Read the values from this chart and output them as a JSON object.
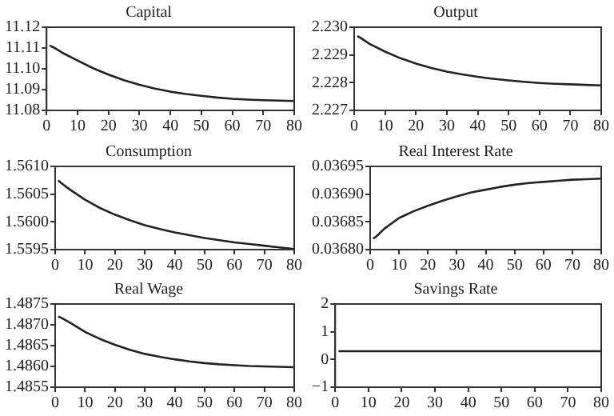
{
  "chart_data": [
    {
      "type": "line",
      "title": "Capital",
      "x": [
        1,
        2,
        5,
        10,
        15,
        20,
        25,
        30,
        35,
        40,
        45,
        50,
        55,
        60,
        65,
        70,
        75,
        80
      ],
      "series": [
        {
          "color": "#222222",
          "values": [
            11.1112,
            11.1105,
            11.1078,
            11.104,
            11.1003,
            11.0972,
            11.0945,
            11.0923,
            11.0905,
            11.089,
            11.0879,
            11.087,
            11.0862,
            11.0856,
            11.0852,
            11.0849,
            11.0847,
            11.0845
          ]
        }
      ],
      "xlim": [
        0,
        80
      ],
      "xticks": [
        0,
        10,
        20,
        30,
        40,
        50,
        60,
        70,
        80
      ],
      "ylim": [
        11.08,
        11.12
      ],
      "yticks": [
        11.08,
        11.09,
        {
          "value": 11.1,
          "label": "11.10"
        },
        11.11,
        11.12
      ],
      "grid": false,
      "legend": false,
      "marker": "none",
      "line_style": "solid"
    },
    {
      "type": "line",
      "title": "Output",
      "x": [
        1,
        2,
        5,
        10,
        15,
        20,
        25,
        30,
        35,
        40,
        45,
        50,
        55,
        60,
        65,
        70,
        75,
        80
      ],
      "series": [
        {
          "color": "#222222",
          "values": [
            2.22968,
            2.22962,
            2.2294,
            2.22912,
            2.22888,
            2.22869,
            2.22853,
            2.2284,
            2.2283,
            2.22821,
            2.22814,
            2.22808,
            2.22803,
            2.22799,
            2.22796,
            2.22794,
            2.22792,
            2.2279
          ]
        }
      ],
      "xlim": [
        0,
        80
      ],
      "xticks": [
        0,
        10,
        20,
        30,
        40,
        50,
        60,
        70,
        80
      ],
      "ylim": [
        2.227,
        2.23
      ],
      "yticks": [
        2.227,
        2.228,
        2.229,
        {
          "value": 2.23,
          "label": "2.230"
        }
      ],
      "grid": false,
      "legend": false,
      "marker": "none",
      "line_style": "solid"
    },
    {
      "type": "line",
      "title": "Consumption",
      "x": [
        1,
        2,
        5,
        10,
        15,
        20,
        25,
        30,
        35,
        40,
        45,
        50,
        55,
        60,
        65,
        70,
        75,
        80
      ],
      "series": [
        {
          "color": "#222222",
          "values": [
            1.56075,
            1.5607,
            1.56058,
            1.5604,
            1.56025,
            1.56013,
            1.56003,
            1.55994,
            1.55987,
            1.55981,
            1.55976,
            1.55971,
            1.55967,
            1.55963,
            1.5596,
            1.55957,
            1.55954,
            1.55951
          ]
        }
      ],
      "xlim": [
        0,
        80
      ],
      "xticks": [
        0,
        10,
        20,
        30,
        40,
        50,
        60,
        70,
        80
      ],
      "ylim": [
        1.5595,
        1.561
      ],
      "yticks": [
        1.5595,
        {
          "value": 1.56,
          "label": "1.5600"
        },
        1.5605,
        {
          "value": 1.561,
          "label": "1.5610"
        }
      ],
      "grid": false,
      "legend": false,
      "marker": "none",
      "line_style": "solid"
    },
    {
      "type": "line",
      "title": "Real Interest Rate",
      "x": [
        1,
        2,
        5,
        10,
        15,
        20,
        25,
        30,
        35,
        40,
        45,
        50,
        55,
        60,
        65,
        70,
        75,
        80
      ],
      "series": [
        {
          "color": "#222222",
          "values": [
            0.03682,
            0.036823,
            0.036838,
            0.036857,
            0.036869,
            0.036879,
            0.036888,
            0.036896,
            0.036903,
            0.036908,
            0.036913,
            0.036917,
            0.03692,
            0.036922,
            0.036924,
            0.036926,
            0.036927,
            0.036928
          ]
        }
      ],
      "xlim": [
        0,
        80
      ],
      "xticks": [
        0,
        10,
        20,
        30,
        40,
        50,
        60,
        70,
        80
      ],
      "ylim": [
        0.0368,
        0.03695
      ],
      "yticks": [
        {
          "value": 0.0368,
          "label": "0.03680"
        },
        0.03685,
        {
          "value": 0.0369,
          "label": "0.03690"
        },
        0.03695
      ],
      "grid": false,
      "legend": false,
      "marker": "none",
      "line_style": "solid"
    },
    {
      "type": "line",
      "title": "Real Wage",
      "x": [
        1,
        2,
        5,
        10,
        15,
        20,
        25,
        30,
        35,
        40,
        45,
        50,
        55,
        60,
        65,
        70,
        75,
        80
      ],
      "series": [
        {
          "color": "#222222",
          "values": [
            1.4872,
            1.48717,
            1.48705,
            1.48683,
            1.48666,
            1.48652,
            1.4864,
            1.4863,
            1.48623,
            1.48617,
            1.48612,
            1.48608,
            1.48605,
            1.48603,
            1.48601,
            1.486,
            1.48599,
            1.48598
          ]
        }
      ],
      "xlim": [
        0,
        80
      ],
      "xticks": [
        0,
        10,
        20,
        30,
        40,
        50,
        60,
        70,
        80
      ],
      "ylim": [
        1.4855,
        1.4875
      ],
      "yticks": [
        1.4855,
        {
          "value": 1.486,
          "label": "1.4860"
        },
        1.4865,
        {
          "value": 1.487,
          "label": "1.4870"
        },
        1.4875
      ],
      "grid": false,
      "legend": false,
      "marker": "none",
      "line_style": "solid"
    },
    {
      "type": "line",
      "title": "Savings Rate",
      "x": [
        1,
        80
      ],
      "series": [
        {
          "color": "#222222",
          "values": [
            0.3,
            0.3
          ]
        }
      ],
      "xlim": [
        0,
        80
      ],
      "xticks": [
        0,
        10,
        20,
        30,
        40,
        50,
        60,
        70,
        80
      ],
      "ylim": [
        -1,
        2
      ],
      "yticks": [
        {
          "value": -1,
          "label": "−1"
        },
        0,
        1,
        2
      ],
      "grid": false,
      "legend": false,
      "marker": "none",
      "line_style": "solid"
    }
  ]
}
